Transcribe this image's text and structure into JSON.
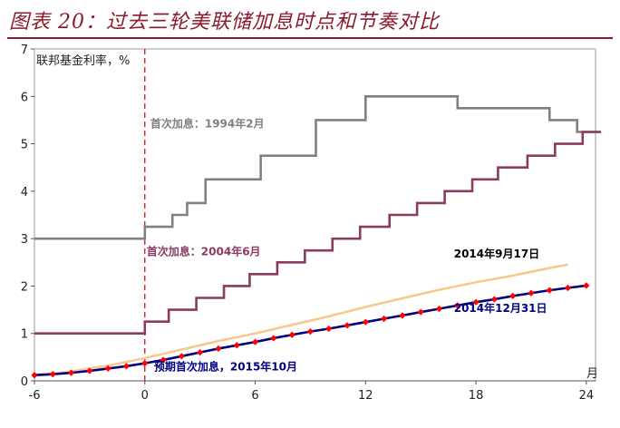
{
  "title": "图表 20：过去三轮美联储加息时点和节奏对比",
  "colors": {
    "title": "#8b1a2b",
    "s1994": "#808080",
    "s2004": "#8b3a62",
    "fcst": "#000080",
    "fcst_marker": "#ff0000",
    "s2014": "#f8c891",
    "vline": "#cc0000"
  },
  "chart_data": {
    "type": "line",
    "ylabel": "联邦基金利率，%",
    "xlabel": "月",
    "xlim": [
      -6,
      24.5
    ],
    "ylim": [
      0,
      7
    ],
    "xticks": [
      -6,
      0,
      6,
      12,
      18,
      24
    ],
    "yticks": [
      0,
      1,
      2,
      3,
      4,
      5,
      6,
      7
    ],
    "xtick_labels": [
      "-6",
      "0",
      "6",
      "12",
      "18",
      "24"
    ],
    "ytick_labels": [
      "0",
      "1",
      "2",
      "3",
      "4",
      "5",
      "6",
      "7"
    ],
    "annotations": [
      {
        "text": "首次加息：1994年2月",
        "x": 0.3,
        "y": 5.35,
        "color": "#808080"
      },
      {
        "text": "首次加息：2004年6月",
        "x": 0.1,
        "y": 2.65,
        "color": "#8b3a62"
      },
      {
        "text": "2014年9月17日",
        "x": 16.8,
        "y": 2.6,
        "color": "#000000"
      },
      {
        "text": "2014年12月31日",
        "x": 16.8,
        "y": 1.45,
        "color": "#000080"
      },
      {
        "text": "预期首次加息，2015年10月",
        "x": 0.5,
        "y": 0.22,
        "color": "#000080"
      }
    ],
    "series": [
      {
        "color": "#808080",
        "step": true,
        "x": [
          -6,
          0,
          1.5,
          2.3,
          3.3,
          6.3,
          9.3,
          12,
          17,
          22,
          23.5,
          24.8
        ],
        "y": [
          3,
          3.25,
          3.5,
          3.75,
          4.25,
          4.75,
          5.5,
          6,
          5.75,
          5.5,
          5.25,
          5.25
        ]
      },
      {
        "color": "#8b3a62",
        "step": true,
        "x": [
          -6,
          0,
          1.3,
          2.8,
          4.3,
          5.7,
          7.2,
          8.7,
          10.2,
          11.7,
          13.3,
          14.8,
          16.3,
          17.8,
          19.2,
          20.8,
          22.3,
          23.8,
          24.8
        ],
        "y": [
          1,
          1.25,
          1.5,
          1.75,
          2,
          2.25,
          2.5,
          2.75,
          3,
          3.25,
          3.5,
          3.75,
          4,
          4.25,
          4.5,
          4.75,
          5,
          5.25,
          5.25
        ]
      },
      {
        "color": "#f8c891",
        "step": false,
        "x": [
          -6,
          -4,
          -2,
          0,
          2,
          4,
          6,
          8,
          10,
          12,
          14,
          16,
          18,
          20,
          22,
          23
        ],
        "y": [
          0.12,
          0.2,
          0.32,
          0.48,
          0.66,
          0.84,
          1.0,
          1.18,
          1.36,
          1.56,
          1.74,
          1.92,
          2.08,
          2.22,
          2.38,
          2.45
        ]
      },
      {
        "color": "#000080",
        "step": false,
        "marker_color": "#ff0000",
        "x": [
          -6,
          -5,
          -4,
          -3,
          -2,
          -1,
          0,
          1,
          2,
          3,
          4,
          5,
          6,
          7,
          8,
          9,
          10,
          11,
          12,
          13,
          14,
          15,
          16,
          17,
          18,
          19,
          20,
          21,
          22,
          23,
          24
        ],
        "y": [
          0.12,
          0.14,
          0.17,
          0.21,
          0.26,
          0.31,
          0.37,
          0.44,
          0.52,
          0.6,
          0.68,
          0.75,
          0.82,
          0.9,
          0.97,
          1.04,
          1.1,
          1.17,
          1.24,
          1.31,
          1.38,
          1.45,
          1.52,
          1.59,
          1.66,
          1.72,
          1.79,
          1.85,
          1.91,
          1.96,
          2.01
        ]
      }
    ]
  }
}
